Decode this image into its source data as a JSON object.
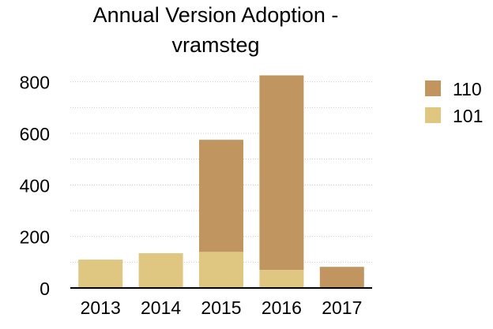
{
  "chart_data": {
    "type": "bar",
    "stacked": true,
    "title_lines": [
      "Annual Version Adoption -",
      "vramsteg"
    ],
    "xlabel": "",
    "ylabel": "",
    "categories": [
      "2013",
      "2014",
      "2015",
      "2016",
      "2017"
    ],
    "ylim": [
      0,
      900
    ],
    "yticks": [
      0,
      200,
      400,
      600,
      800
    ],
    "grid": true,
    "legend_position": "right",
    "series": [
      {
        "name": "101",
        "color": "#dfc681",
        "values": [
          110,
          135,
          140,
          70,
          0
        ]
      },
      {
        "name": "110",
        "color": "#c09560",
        "values": [
          0,
          0,
          435,
          755,
          82
        ]
      }
    ],
    "legend_order": [
      "110",
      "101"
    ]
  }
}
